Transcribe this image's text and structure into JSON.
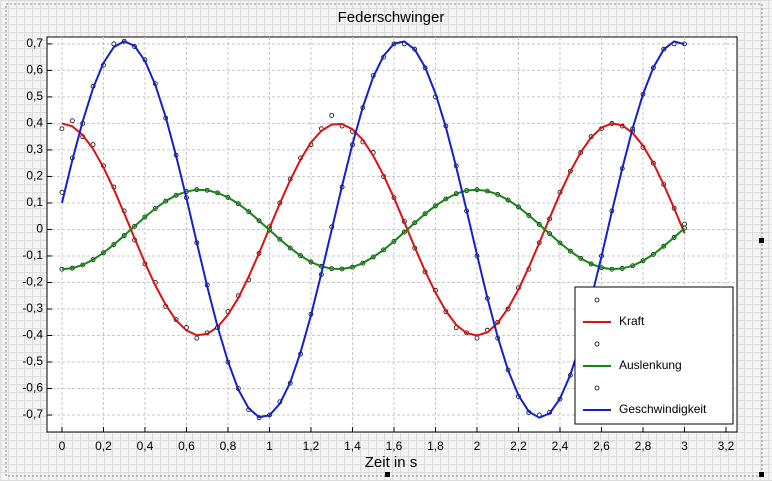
{
  "chart_data": {
    "type": "line",
    "title": "Federschwinger",
    "xlabel": "Zeit in s",
    "x": [
      0,
      0.05,
      0.1,
      0.15,
      0.2,
      0.25,
      0.3,
      0.35,
      0.4,
      0.45,
      0.5,
      0.55,
      0.6,
      0.65,
      0.7,
      0.75,
      0.8,
      0.85,
      0.9,
      0.95,
      1,
      1.05,
      1.1,
      1.15,
      1.2,
      1.25,
      1.3,
      1.35,
      1.4,
      1.45,
      1.5,
      1.55,
      1.6,
      1.65,
      1.7,
      1.75,
      1.8,
      1.85,
      1.9,
      1.95,
      2,
      2.05,
      2.1,
      2.15,
      2.2,
      2.25,
      2.3,
      2.35,
      2.4,
      2.45,
      2.5,
      2.55,
      2.6,
      2.65,
      2.7,
      2.75,
      2.8,
      2.85,
      2.9,
      2.95,
      3
    ],
    "series": [
      {
        "style": "points",
        "color": "#000000",
        "values": [
          0.38,
          0.41,
          0.35,
          0.32,
          0.24,
          0.16,
          0.07,
          -0.04,
          -0.13,
          -0.2,
          -0.29,
          -0.34,
          -0.37,
          -0.41,
          -0.39,
          -0.37,
          -0.31,
          -0.25,
          -0.19,
          -0.09,
          0.01,
          0.1,
          0.19,
          0.27,
          0.32,
          0.38,
          0.43,
          0.39,
          0.37,
          0.33,
          0.29,
          0.2,
          0.12,
          0.03,
          -0.07,
          -0.16,
          -0.23,
          -0.31,
          -0.37,
          -0.39,
          -0.41,
          -0.38,
          -0.35,
          -0.3,
          -0.22,
          -0.15,
          -0.05,
          0.04,
          0.14,
          0.22,
          0.29,
          0.35,
          0.38,
          0.4,
          0.39,
          0.37,
          0.31,
          0.25,
          0.17,
          0.08,
          0.02
        ]
      },
      {
        "name": "Kraft",
        "style": "line",
        "color": "#dd1111",
        "values": [
          0.4,
          0.389,
          0.356,
          0.304,
          0.234,
          0.152,
          0.061,
          -0.033,
          -0.126,
          -0.211,
          -0.284,
          -0.343,
          -0.381,
          -0.399,
          -0.394,
          -0.368,
          -0.322,
          -0.258,
          -0.178,
          -0.089,
          0.005,
          0.098,
          0.186,
          0.264,
          0.328,
          0.372,
          0.396,
          0.398,
          0.378,
          0.338,
          0.278,
          0.204,
          0.119,
          0.027,
          -0.067,
          -0.157,
          -0.238,
          -0.307,
          -0.36,
          -0.391,
          -0.4,
          -0.388,
          -0.352,
          -0.297,
          -0.226,
          -0.142,
          -0.051,
          0.043,
          0.135,
          0.219,
          0.291,
          0.347,
          0.384,
          0.4,
          0.393,
          0.364,
          0.316,
          0.25,
          0.169,
          0.08,
          -0.014
        ]
      },
      {
        "style": "points",
        "color": "#000000",
        "values": [
          -0.15,
          -0.146,
          -0.134,
          -0.114,
          -0.088,
          -0.057,
          -0.023,
          0.012,
          0.047,
          0.079,
          0.107,
          0.129,
          0.143,
          0.15,
          0.148,
          0.138,
          0.121,
          0.097,
          0.067,
          0.033,
          -0.002,
          -0.037,
          -0.07,
          -0.099,
          -0.123,
          -0.139,
          -0.148,
          -0.149,
          -0.142,
          -0.127,
          -0.104,
          -0.077,
          -0.045,
          -0.01,
          0.025,
          0.059,
          0.089,
          0.115,
          0.135,
          0.147,
          0.15,
          0.145,
          0.132,
          0.111,
          0.085,
          0.053,
          0.019,
          -0.016,
          -0.051,
          -0.082,
          -0.109,
          -0.13,
          -0.144,
          -0.15,
          -0.147,
          -0.137,
          -0.118,
          -0.094,
          -0.063,
          -0.03,
          0.005
        ]
      },
      {
        "name": "Auslenkung",
        "style": "line",
        "color": "#118811",
        "values": [
          -0.15,
          -0.146,
          -0.134,
          -0.114,
          -0.088,
          -0.057,
          -0.023,
          0.012,
          0.047,
          0.079,
          0.107,
          0.129,
          0.143,
          0.15,
          0.148,
          0.138,
          0.121,
          0.097,
          0.067,
          0.033,
          -0.002,
          -0.037,
          -0.07,
          -0.099,
          -0.123,
          -0.139,
          -0.148,
          -0.149,
          -0.142,
          -0.127,
          -0.104,
          -0.077,
          -0.045,
          -0.01,
          0.025,
          0.059,
          0.089,
          0.115,
          0.135,
          0.147,
          0.15,
          0.145,
          0.132,
          0.111,
          0.085,
          0.053,
          0.019,
          -0.016,
          -0.051,
          -0.082,
          -0.109,
          -0.13,
          -0.144,
          -0.15,
          -0.147,
          -0.137,
          -0.118,
          -0.094,
          -0.063,
          -0.03,
          0.005
        ]
      },
      {
        "style": "points",
        "color": "#000000",
        "values": [
          0.14,
          0.27,
          0.4,
          0.54,
          0.62,
          0.7,
          0.71,
          0.69,
          0.64,
          0.55,
          0.42,
          0.28,
          0.12,
          -0.05,
          -0.21,
          -0.37,
          -0.5,
          -0.6,
          -0.68,
          -0.71,
          -0.7,
          -0.65,
          -0.58,
          -0.47,
          -0.32,
          -0.17,
          0.01,
          0.16,
          0.32,
          0.46,
          0.58,
          0.65,
          0.7,
          0.7,
          0.68,
          0.61,
          0.5,
          0.39,
          0.24,
          0.07,
          -0.1,
          -0.26,
          -0.41,
          -0.53,
          -0.63,
          -0.69,
          -0.7,
          -0.69,
          -0.64,
          -0.55,
          -0.42,
          -0.27,
          -0.1,
          0.07,
          0.23,
          0.38,
          0.51,
          0.61,
          0.68,
          0.7,
          0.7
        ]
      },
      {
        "name": "Geschwindigkeit",
        "style": "line",
        "color": "#1122cc",
        "values": [
          0.1,
          0.261,
          0.408,
          0.533,
          0.628,
          0.688,
          0.71,
          0.692,
          0.636,
          0.545,
          0.424,
          0.278,
          0.118,
          -0.05,
          -0.215,
          -0.367,
          -0.498,
          -0.604,
          -0.675,
          -0.708,
          -0.701,
          -0.657,
          -0.577,
          -0.463,
          -0.324,
          -0.166,
          -0.001,
          0.165,
          0.322,
          0.462,
          0.575,
          0.655,
          0.701,
          0.709,
          0.679,
          0.612,
          0.513,
          0.386,
          0.235,
          0.072,
          -0.095,
          -0.258,
          -0.406,
          -0.531,
          -0.626,
          -0.687,
          -0.71,
          -0.694,
          -0.638,
          -0.548,
          -0.428,
          -0.263,
          -0.102,
          0.067,
          0.23,
          0.381,
          0.51,
          0.611,
          0.679,
          0.709,
          0.699
        ]
      }
    ],
    "xlim": [
      -0.072,
      3.253
    ],
    "ylim": [
      -0.764,
      0.726
    ],
    "xticks": [
      0,
      {
        "value": 0.2,
        "label": "0,2"
      },
      {
        "value": 0.4,
        "label": "0,4"
      },
      {
        "value": 0.6,
        "label": "0,6"
      },
      {
        "value": 0.8,
        "label": "0,8"
      },
      1,
      {
        "value": 1.2,
        "label": "1,2"
      },
      {
        "value": 1.4,
        "label": "1,4"
      },
      {
        "value": 1.6,
        "label": "1,6"
      },
      {
        "value": 1.8,
        "label": "1,8"
      },
      2,
      {
        "value": 2.2,
        "label": "2,2"
      },
      {
        "value": 2.4,
        "label": "2,4"
      },
      {
        "value": 2.6,
        "label": "2,6"
      },
      {
        "value": 2.8,
        "label": "2,8"
      },
      3,
      {
        "value": 3.2,
        "label": "3,2"
      }
    ],
    "yticks": [
      {
        "value": -0.7,
        "label": "-0,7"
      },
      {
        "value": -0.6,
        "label": "-0,6"
      },
      {
        "value": -0.5,
        "label": "-0,5"
      },
      {
        "value": -0.4,
        "label": "-0,4"
      },
      {
        "value": -0.3,
        "label": "-0,3"
      },
      {
        "value": -0.2,
        "label": "-0,2"
      },
      {
        "value": -0.1,
        "label": "-0,1"
      },
      0,
      {
        "value": 0.1,
        "label": "0,1"
      },
      {
        "value": 0.2,
        "label": "0,2"
      },
      {
        "value": 0.3,
        "label": "0,3"
      },
      {
        "value": 0.4,
        "label": "0,4"
      },
      {
        "value": 0.5,
        "label": "0,5"
      },
      {
        "value": 0.6,
        "label": "0,6"
      },
      {
        "value": 0.7,
        "label": "0,7"
      }
    ],
    "grid": true,
    "legend": "lower right"
  }
}
